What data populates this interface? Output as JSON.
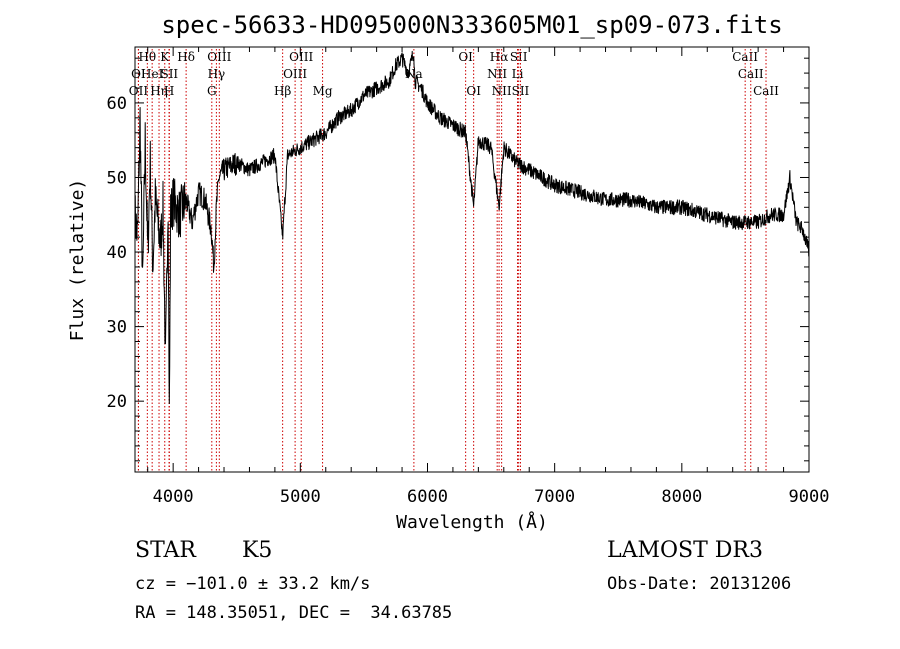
{
  "chart_data": {
    "type": "line",
    "title": "spec-56633-HD095000N333605M01_sp09-073.fits",
    "xlabel": "Wavelength (Å)",
    "ylabel": "Flux (relative)",
    "xlim": [
      3700,
      9000
    ],
    "ylim": [
      10.5,
      67.5
    ],
    "xticks": [
      4000,
      5000,
      6000,
      7000,
      8000,
      9000
    ],
    "yticks": [
      20,
      30,
      40,
      50,
      60
    ],
    "series": [
      {
        "name": "spectrum",
        "x": [
          3700,
          3720,
          3740,
          3760,
          3780,
          3800,
          3820,
          3840,
          3860,
          3880,
          3900,
          3920,
          3940,
          3960,
          3970,
          3980,
          4000,
          4050,
          4100,
          4150,
          4200,
          4250,
          4300,
          4320,
          4340,
          4360,
          4400,
          4500,
          4600,
          4700,
          4800,
          4861,
          4900,
          5000,
          5100,
          5200,
          5300,
          5400,
          5500,
          5600,
          5700,
          5750,
          5800,
          5850,
          5893,
          5900,
          5950,
          6000,
          6100,
          6200,
          6300,
          6363,
          6400,
          6500,
          6563,
          6600,
          6650,
          6700,
          6800,
          6900,
          7000,
          7200,
          7400,
          7600,
          7800,
          8000,
          8200,
          8400,
          8500,
          8600,
          8700,
          8800,
          8850,
          8900,
          8950,
          9000
        ],
        "values": [
          45,
          42,
          58,
          35,
          55,
          40,
          52,
          38,
          47,
          44,
          41,
          46,
          25,
          47,
          18,
          45,
          47,
          45,
          47,
          44,
          48,
          47,
          43,
          38,
          46,
          50,
          51,
          52,
          51,
          52,
          53,
          42,
          53,
          54,
          55,
          56,
          58,
          59,
          61,
          62,
          63,
          65,
          66,
          64,
          67,
          63,
          62,
          60,
          58,
          57,
          56,
          46,
          55,
          54,
          46,
          54,
          53,
          52,
          51,
          50,
          49,
          48,
          47,
          47,
          46,
          46,
          45,
          44,
          44,
          44,
          45,
          45,
          50,
          44,
          43,
          40
        ]
      }
    ],
    "line_markers": [
      {
        "label": "OII",
        "x": 3727,
        "row": 3
      },
      {
        "label": "OI",
        "x": 3727,
        "row": 2
      },
      {
        "label": "Hθ",
        "x": 3797,
        "row": 1
      },
      {
        "label": "HeI",
        "x": 3835,
        "row": 2
      },
      {
        "label": "Hη",
        "x": 3889,
        "row": 3
      },
      {
        "label": "K",
        "x": 3934,
        "row": 1
      },
      {
        "label": "SII",
        "x": 3970,
        "row": 2
      },
      {
        "label": "H",
        "x": 3968,
        "row": 3
      },
      {
        "label": "Hδ",
        "x": 4102,
        "row": 1
      },
      {
        "label": "OIII",
        "x": 4363,
        "row": 1
      },
      {
        "label": "Hγ",
        "x": 4340,
        "row": 2
      },
      {
        "label": "G",
        "x": 4304,
        "row": 3
      },
      {
        "label": "Hβ",
        "x": 4861,
        "row": 3
      },
      {
        "label": "OIII",
        "x": 4959,
        "row": 2
      },
      {
        "label": "OIII",
        "x": 5007,
        "row": 1
      },
      {
        "label": "Mg",
        "x": 5175,
        "row": 3
      },
      {
        "label": "Na",
        "x": 5893,
        "row": 2
      },
      {
        "label": "OI",
        "x": 6300,
        "row": 1
      },
      {
        "label": "OI",
        "x": 6363,
        "row": 3
      },
      {
        "label": "Hα",
        "x": 6563,
        "row": 1
      },
      {
        "label": "NII",
        "x": 6548,
        "row": 2
      },
      {
        "label": "NII",
        "x": 6583,
        "row": 3
      },
      {
        "label": "SII",
        "x": 6717,
        "row": 1
      },
      {
        "label": "Li",
        "x": 6708,
        "row": 2
      },
      {
        "label": "SII",
        "x": 6731,
        "row": 3
      },
      {
        "label": "CaII",
        "x": 8498,
        "row": 1
      },
      {
        "label": "CaII",
        "x": 8542,
        "row": 2
      },
      {
        "label": "CaII",
        "x": 8662,
        "row": 3
      }
    ]
  },
  "info": {
    "class": "STAR",
    "subclass": "K5",
    "survey": "LAMOST DR3",
    "cz": "cz = −101.0 ± 33.2 km/s",
    "obs_date": "Obs-Date: 20131206",
    "coords": "RA = 148.35051, DEC =  34.63785"
  },
  "colors": {
    "marker": "#cc0000",
    "ink": "#000000"
  }
}
